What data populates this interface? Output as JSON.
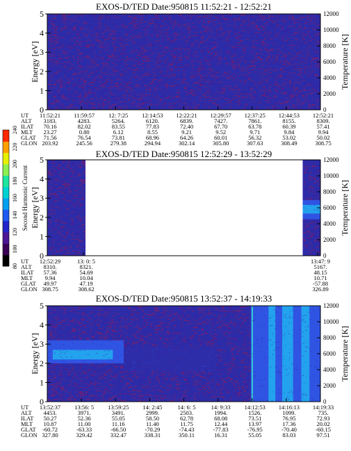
{
  "colorbar": {
    "label": "Second Harmonic Current",
    "ticks": [
      "80",
      "100",
      "120",
      "140",
      "160",
      "180",
      "200",
      "220",
      "240"
    ],
    "colors": [
      "#000000",
      "#3a0056",
      "#4b1596",
      "#2424c8",
      "#1e5af0",
      "#00a0f0",
      "#00d2d2",
      "#1ee6a0",
      "#8cf050",
      "#e6f000",
      "#ffa000",
      "#ff2800"
    ]
  },
  "colors": {
    "background": "#2d2ca8",
    "noise": "#7a1f6b",
    "noise_alt": "#3b1ea0",
    "weak": "#2f56e6",
    "strong": "#23a6ee",
    "peak": "#35d0d2"
  },
  "chart_data": [
    {
      "type": "heatmap",
      "title": "EXOS-D/TED   Date:950815   11:52:21 - 12:52:21",
      "ylabel": "Energy [eV]",
      "y2label": "Temperature [K]",
      "ylim": [
        0,
        5
      ],
      "y2lim": [
        0,
        12000
      ],
      "yticks": [
        "0",
        "1",
        "2",
        "3",
        "4",
        "5"
      ],
      "y2ticks": [
        "0",
        "2000",
        "4000",
        "6000",
        "8000",
        "10000",
        "12000"
      ],
      "rowlabels": [
        "UT",
        "ALT",
        "ILAT",
        "MLT",
        "GLAT",
        "GLON"
      ],
      "columns": [
        [
          "11:52:21",
          "3183.",
          "70.16",
          "23.27",
          "71.56",
          "203.92"
        ],
        [
          "11:59:57",
          "4283.",
          "82.02",
          "0.80",
          "76.54",
          "245.56"
        ],
        [
          "12: 7:25",
          "5264.",
          "83.55",
          "6.12",
          "73.81",
          "279.38"
        ],
        [
          "12:14:53",
          "6120.",
          "77.83",
          "8.55",
          "68.96",
          "294.94"
        ],
        [
          "12:22:21",
          "6839.",
          "72.40",
          "9.21",
          "64.26",
          "302.14"
        ],
        [
          "12:29:57",
          "7427.",
          "67.70",
          "9.52",
          "60.01",
          "305.80"
        ],
        [
          "12:37:25",
          "7861.",
          "63.78",
          "9.71",
          "56.32",
          "307.63"
        ],
        [
          "12:44:53",
          "8155.",
          "60.39",
          "9.84",
          "53.02",
          "308.49"
        ],
        [
          "12:52:21",
          "8309.",
          "57.41",
          "9.94",
          "50.02",
          "308.75"
        ]
      ],
      "features": [
        {
          "x0": 0.0,
          "x1": 1.0,
          "e0": 0,
          "e1": 5,
          "level": "noise"
        }
      ]
    },
    {
      "type": "heatmap",
      "title": "EXOS-D/TED   Date:950815   12:52:29 - 13:52:29",
      "ylabel": "Energy [eV]",
      "y2label": "Temperature [K]",
      "ylim": [
        0,
        5
      ],
      "y2lim": [
        0,
        12000
      ],
      "yticks": [
        "0",
        "1",
        "2",
        "3",
        "4",
        "5"
      ],
      "y2ticks": [
        "0",
        "2000",
        "4000",
        "6000",
        "8000",
        "10000",
        "12000"
      ],
      "rowlabels": [
        "UT",
        "ALT",
        "ILAT",
        "MLT",
        "GLAT",
        "GLON"
      ],
      "columns": [
        [
          "12:52:29",
          "8310.",
          "57.36",
          "9.94",
          "49.97",
          "308.75"
        ],
        [
          "13: 0: 5",
          "8321.",
          "54.69",
          "10.04",
          "47.19",
          "308.62"
        ],
        [
          "13:47: 9",
          "5167.",
          "48.15",
          "10.71",
          "-57.88",
          "326.89"
        ]
      ],
      "data_segments": [
        [
          0.0,
          0.14
        ],
        [
          0.935,
          1.0
        ]
      ],
      "features": [
        {
          "x0": 0.935,
          "x1": 1.0,
          "e0": 1.9,
          "e1": 2.9,
          "level": "weak"
        },
        {
          "x0": 0.935,
          "x1": 1.0,
          "e0": 2.2,
          "e1": 2.65,
          "level": "strong"
        }
      ]
    },
    {
      "type": "heatmap",
      "title": "EXOS-D/TED   Date:950815   13:52:37 - 14:19:33",
      "ylabel": "Energy [eV]",
      "y2label": "Temperature [K]",
      "ylim": [
        0,
        5
      ],
      "y2lim": [
        0,
        12000
      ],
      "yticks": [
        "0",
        "1",
        "2",
        "3",
        "4",
        "5"
      ],
      "y2ticks": [
        "0",
        "2000",
        "4000",
        "6000",
        "8000",
        "10000",
        "12000"
      ],
      "rowlabels": [
        "UT",
        "ALT",
        "ILAT",
        "MLT",
        "GLAT",
        "GLON"
      ],
      "columns": [
        [
          "13:52:37",
          "4453.",
          "50.27",
          "10.87",
          "-60.72",
          "327.80"
        ],
        [
          "13:56: 5",
          "3971.",
          "52.36",
          "11.00",
          "-63.33",
          "329.42"
        ],
        [
          "13:59:25",
          "3491.",
          "55.05",
          "11.16",
          "-66.50",
          "332.47"
        ],
        [
          "14: 2:45",
          "2999.",
          "58.50",
          "11.40",
          "-70.29",
          "338.31"
        ],
        [
          "14: 6: 5",
          "2503.",
          "62.78",
          "11.75",
          "-74.43",
          "350.11"
        ],
        [
          "14: 9:33",
          "1994.",
          "68.08",
          "12.44",
          "-77.83",
          "16.31"
        ],
        [
          "14:12:53",
          "1526.",
          "73.51",
          "13.97",
          "-76.95",
          "55.05"
        ],
        [
          "14:16:13",
          "1099.",
          "76.95",
          "17.36",
          "-70.40",
          "83.03"
        ],
        [
          "14:19:33",
          "735.",
          "72.93",
          "20.02",
          "-60.15",
          "97.51"
        ]
      ],
      "features": [
        {
          "x0": 0.0,
          "x1": 0.28,
          "e0": 2.0,
          "e1": 3.2,
          "level": "weak"
        },
        {
          "x0": 0.02,
          "x1": 0.24,
          "e0": 2.2,
          "e1": 2.7,
          "level": "strong"
        },
        {
          "x0": 0.28,
          "x1": 0.62,
          "e0": 1.6,
          "e1": 2.8,
          "level": "bg"
        },
        {
          "x0": 0.745,
          "x1": 1.0,
          "e0": 0,
          "e1": 5,
          "level": "weak"
        },
        {
          "x0": 0.748,
          "x1": 0.753,
          "e0": 0,
          "e1": 5,
          "level": "peak"
        },
        {
          "x0": 0.81,
          "x1": 0.835,
          "e0": 0,
          "e1": 5,
          "level": "strong"
        },
        {
          "x0": 0.86,
          "x1": 0.9,
          "e0": 0,
          "e1": 5,
          "level": "strong"
        },
        {
          "x0": 0.93,
          "x1": 0.96,
          "e0": 0,
          "e1": 5,
          "level": "strong"
        }
      ]
    }
  ]
}
